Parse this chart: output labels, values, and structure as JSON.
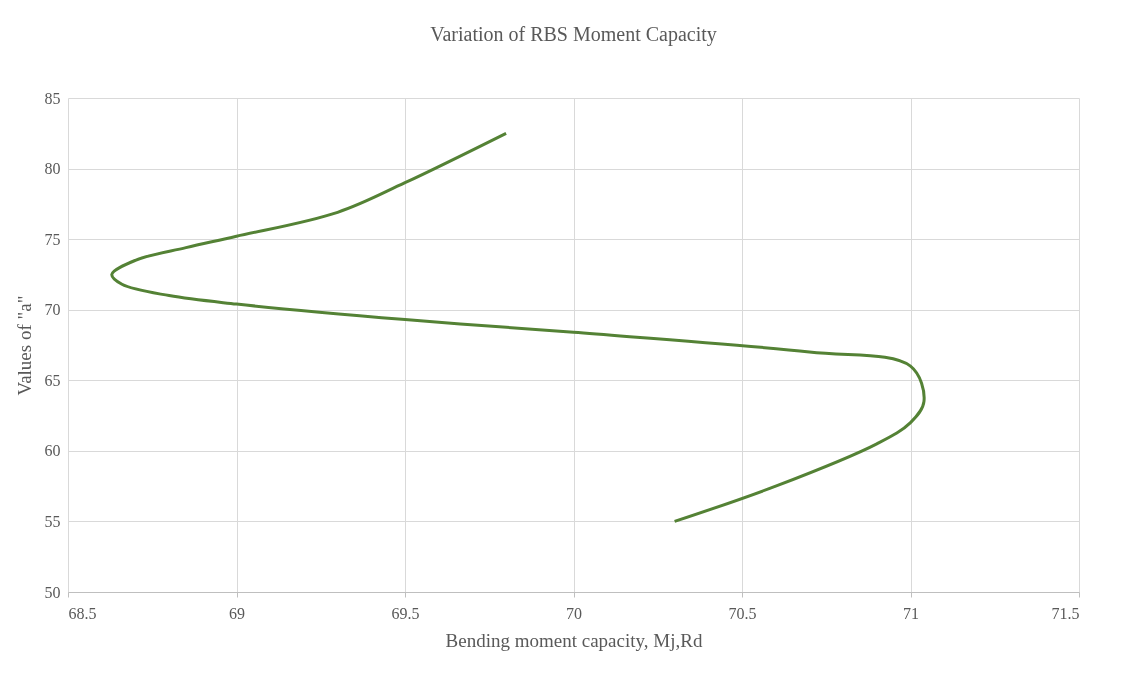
{
  "chart_data": {
    "type": "line",
    "title": "Variation of RBS Moment Capacity",
    "xlabel": "Bending moment capacity, Mj,Rd",
    "ylabel": "Values of \"a\"",
    "series": [
      {
        "color": "#548235",
        "x": [
          70.3,
          70.6,
          70.9,
          71.0,
          71.04,
          71.0,
          70.7,
          70.0,
          69.5,
          69.0,
          68.8,
          68.66,
          68.63,
          68.7,
          68.85,
          69.0,
          69.3,
          69.5,
          69.8
        ],
        "values": [
          55,
          57.5,
          60.5,
          62,
          63.5,
          66,
          67,
          68.4,
          69.3,
          70.4,
          71.0,
          71.8,
          72.5,
          73.5,
          74.4,
          75.2,
          76.9,
          79,
          82.5
        ]
      }
    ],
    "xlim": [
      68.5,
      71.5
    ],
    "xticks": [
      68.5,
      69,
      69.5,
      70,
      70.5,
      71,
      71.5
    ],
    "ylim": [
      50,
      85
    ],
    "yticks": [
      50,
      55,
      60,
      65,
      70,
      75,
      80,
      85
    ],
    "grid": true,
    "marker": "none",
    "line_style": "solid"
  }
}
